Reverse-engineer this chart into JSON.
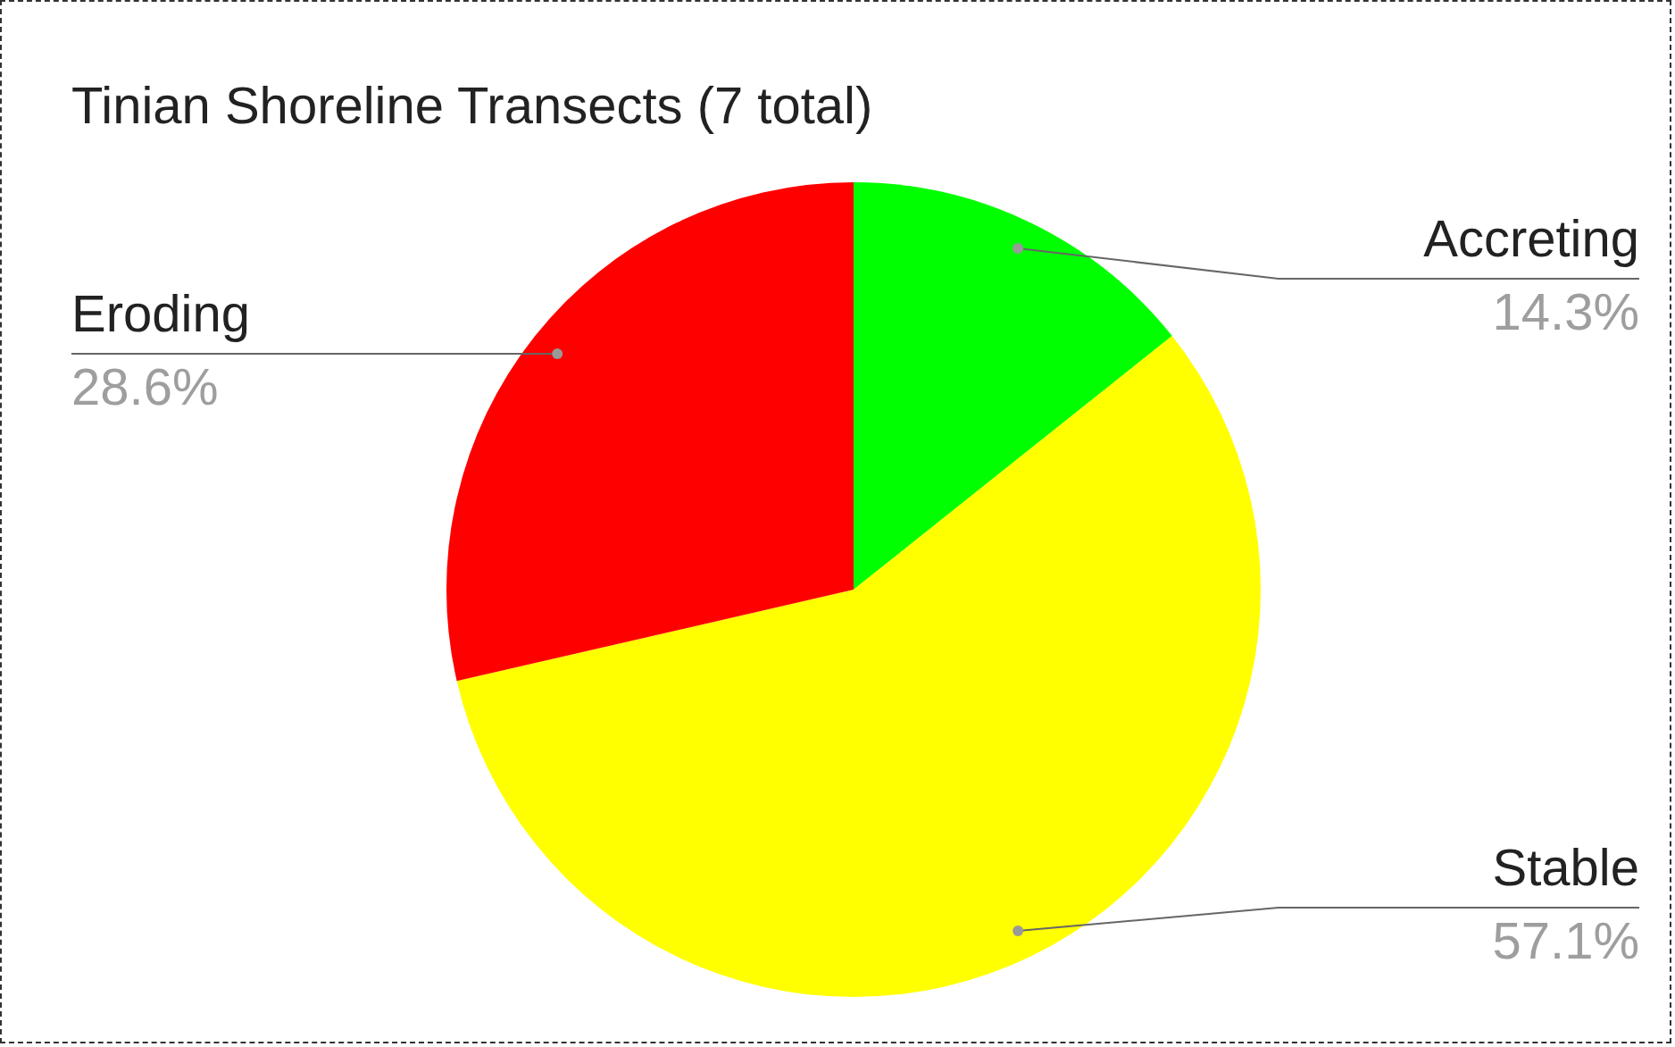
{
  "chart_data": {
    "type": "pie",
    "title": "Tinian Shoreline Transects (7 total)",
    "categories": [
      "Accreting",
      "Stable",
      "Eroding"
    ],
    "values": [
      14.3,
      57.1,
      28.6
    ],
    "colors": [
      "#00ff00",
      "#ffff00",
      "#ff0000"
    ],
    "value_labels": [
      "14.3%",
      "57.1%",
      "28.6%"
    ],
    "legend": false
  }
}
